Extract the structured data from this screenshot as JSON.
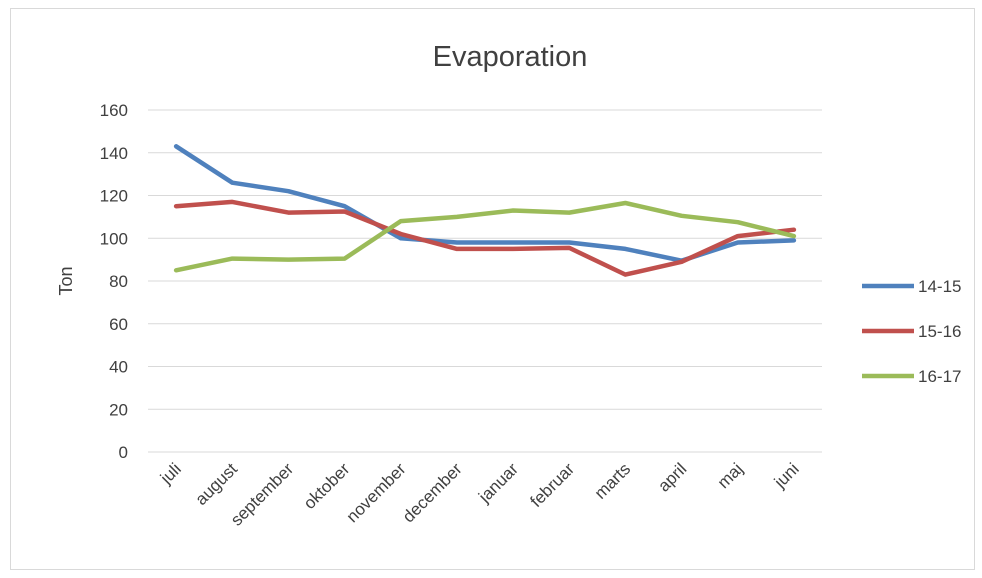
{
  "chart_data": {
    "type": "line",
    "title": "Evaporation",
    "xlabel": "",
    "ylabel": "Ton",
    "ylim": [
      0,
      160
    ],
    "yticks": [
      0,
      20,
      40,
      60,
      80,
      100,
      120,
      140,
      160
    ],
    "grid": true,
    "legend_position": "right",
    "categories": [
      "juli",
      "august",
      "september",
      "oktober",
      "november",
      "december",
      "januar",
      "februar",
      "marts",
      "april",
      "maj",
      "juni"
    ],
    "series": [
      {
        "name": "14-15",
        "color": "#4f81bd",
        "values": [
          143,
          126,
          122,
          115,
          100,
          98,
          98,
          98,
          95,
          89.5,
          98,
          99
        ]
      },
      {
        "name": "15-16",
        "color": "#c0504d",
        "values": [
          115,
          117,
          112,
          112.5,
          102,
          95,
          95,
          95.5,
          83,
          89,
          101,
          104
        ]
      },
      {
        "name": "16-17",
        "color": "#9bbb59",
        "values": [
          85,
          90.5,
          90,
          90.5,
          108,
          110,
          113,
          112,
          116.5,
          110.5,
          107.5,
          101
        ]
      }
    ]
  }
}
